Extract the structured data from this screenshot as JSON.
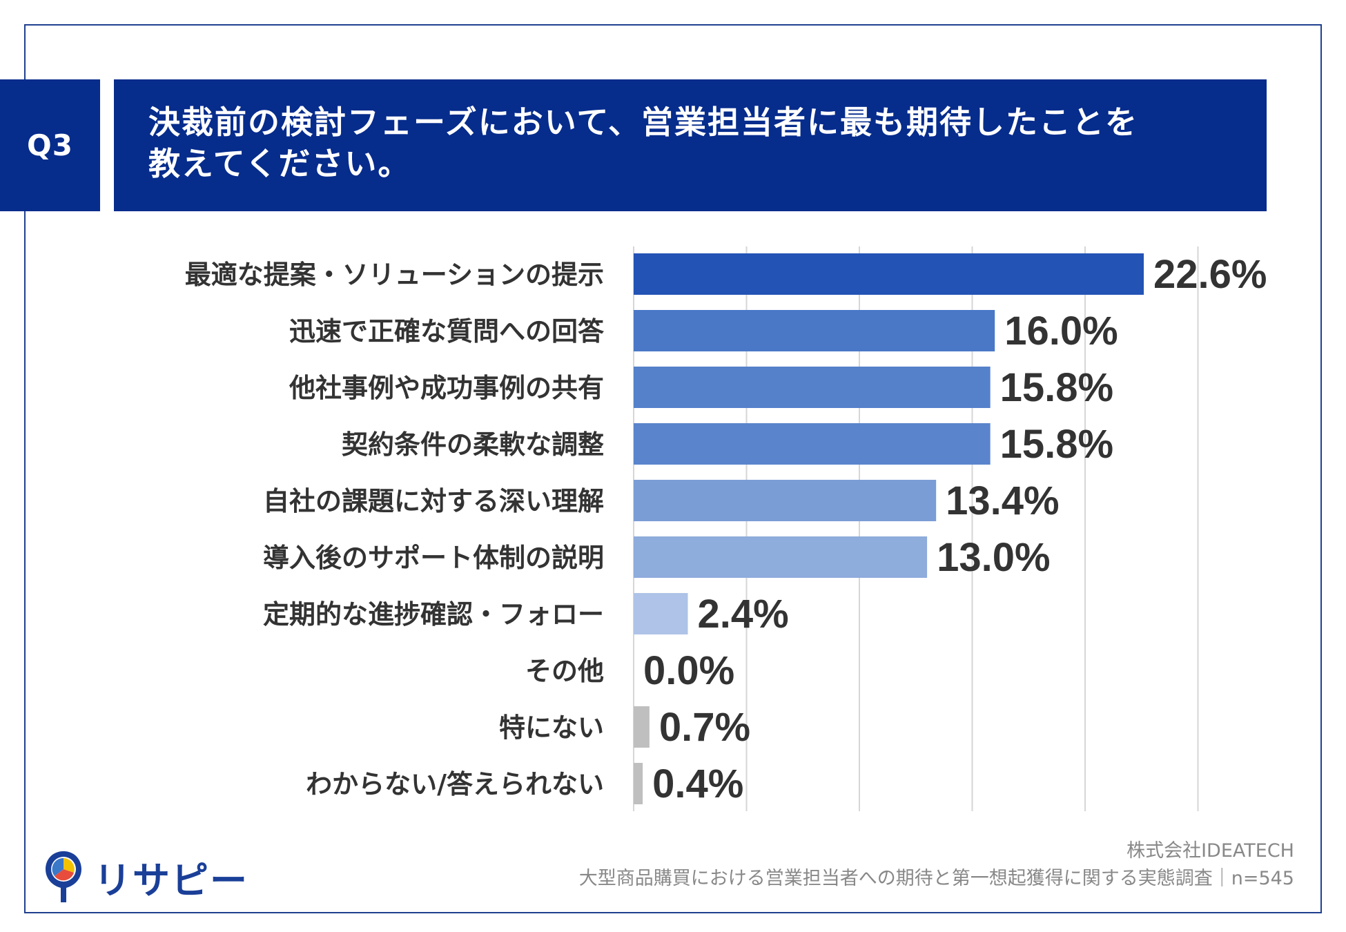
{
  "header": {
    "question_no": "Q3",
    "title_line1": "決裁前の検討フェーズにおいて、営業担当者に最も期待したことを",
    "title_line2": "教えてください。"
  },
  "chart_data": {
    "type": "bar",
    "orientation": "horizontal",
    "categories": [
      "最適な提案・ソリューションの提示",
      "迅速で正確な質問への回答",
      "他社事例や成功事例の共有",
      "契約条件の柔軟な調整",
      "自社の課題に対する深い理解",
      "導入後のサポート体制の説明",
      "定期的な進捗確認・フォロー",
      "その他",
      "特にない",
      "わからない/答えられない"
    ],
    "values": [
      22.6,
      16.0,
      15.8,
      15.8,
      13.4,
      13.0,
      2.4,
      0.0,
      0.7,
      0.4
    ],
    "value_labels": [
      "22.6%",
      "16.0%",
      "15.8%",
      "15.8%",
      "13.4%",
      "13.0%",
      "2.4%",
      "0.0%",
      "0.7%",
      "0.4%"
    ],
    "bar_colors": [
      "#2353b5",
      "#4a78c7",
      "#5580ca",
      "#5a84cc",
      "#7b9dd6",
      "#8eacdc",
      "#aec3e7",
      "#bfbfbf",
      "#bfbfbf",
      "#bfbfbf"
    ],
    "xlim": [
      0,
      30
    ],
    "grid": true,
    "gridline_values": [
      0,
      5,
      10,
      15,
      20,
      25
    ]
  },
  "footer": {
    "company": "株式会社IDEATECH",
    "survey": "大型商品購買における営業担当者への期待と第一想起獲得に関する実態調査｜n=545"
  },
  "logo": {
    "text": "リサピー",
    "icon": "pin-pie-icon"
  }
}
